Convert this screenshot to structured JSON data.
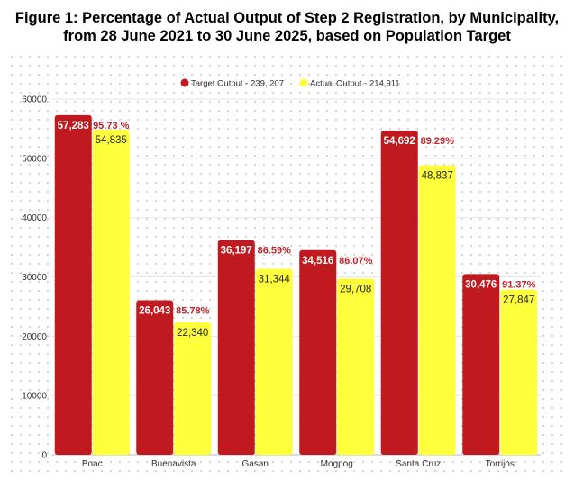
{
  "chart_data": {
    "type": "bar",
    "title_line1": "Figure 1: Percentage of Actual Output of Step 2 Registration, by Municipality,",
    "title_line2": "from 28 June 2021 to 30 June 2025, based on Population Target",
    "categories": [
      "Boac",
      "Buenavista",
      "Gasan",
      "Mogpog",
      "Santa Cruz",
      "Torrijos"
    ],
    "series": [
      {
        "name": "Target Output - 239, 207",
        "color": "#c0191f",
        "values": [
          57283,
          26043,
          36197,
          34516,
          54692,
          30476
        ],
        "labels": [
          "57,283",
          "26,043",
          "36,197",
          "34,516",
          "54,692",
          "30,476"
        ]
      },
      {
        "name": "Actual Output - 214,911",
        "color": "#ffff3c",
        "values": [
          54835,
          22340,
          31344,
          29708,
          48837,
          27847
        ],
        "labels": [
          "54,835",
          "22,340",
          "31,344",
          "29,708",
          "48,837",
          "27,847"
        ]
      }
    ],
    "percentages": [
      "95.73 %",
      "85.78%",
      "86.59%",
      "86.07%",
      "89.29%",
      "91.37%"
    ],
    "ylim": [
      0,
      60000
    ],
    "yticks": [
      "0",
      "10000",
      "20000",
      "30000",
      "40000",
      "50000",
      "60000"
    ],
    "ytick_values": [
      0,
      10000,
      20000,
      30000,
      40000,
      50000,
      60000
    ],
    "legend_position": "top-center",
    "grid": true
  }
}
